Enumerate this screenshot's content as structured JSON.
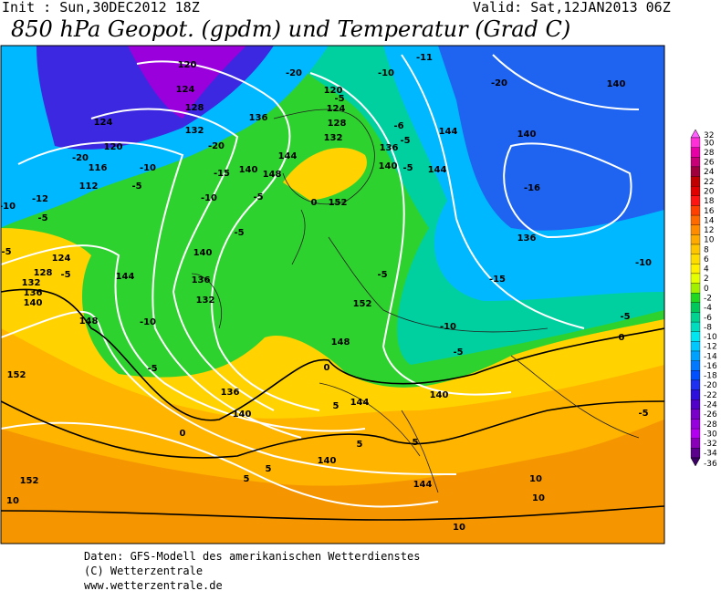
{
  "header": {
    "init": "Init : Sun,30DEC2012 18Z",
    "valid": "Valid: Sat,12JAN2013 06Z",
    "title": "850 hPa Geopot. (gpdm) und Temperatur (Grad C)"
  },
  "colorbar": {
    "levels": [
      32,
      30,
      28,
      26,
      24,
      22,
      20,
      18,
      16,
      14,
      12,
      10,
      8,
      6,
      4,
      2,
      0,
      -2,
      -4,
      -6,
      -8,
      -10,
      -12,
      -14,
      -16,
      -18,
      -20,
      -22,
      -24,
      -26,
      -28,
      -30,
      -32,
      -34,
      -36
    ],
    "colors": [
      "#ff60ff",
      "#ff30d8",
      "#e600a6",
      "#c80078",
      "#a0003c",
      "#c00000",
      "#e00000",
      "#ff1414",
      "#ff4000",
      "#ff6a00",
      "#ff8c00",
      "#ffaa00",
      "#ffc600",
      "#ffdc00",
      "#fff000",
      "#e4ff00",
      "#a0f000",
      "#20d820",
      "#00c85a",
      "#00d290",
      "#00dcbe",
      "#00e6f0",
      "#00c8ff",
      "#00a0ff",
      "#0078ff",
      "#0050ff",
      "#1e30f0",
      "#2e10dc",
      "#5000c8",
      "#7800c8",
      "#9600dc",
      "#b400f0",
      "#8a00b8",
      "#5a008c",
      "#3a0064"
    ]
  },
  "contour_labels": [
    "120",
    "124",
    "128",
    "132",
    "-20",
    "-10",
    "-11",
    "-20",
    "140",
    "120",
    "-5",
    "124",
    "128",
    "132",
    "136",
    "124",
    "-20",
    "120",
    "116",
    "-10",
    "112",
    "-5",
    "-15",
    "-20",
    "140",
    "148",
    "144",
    "-5",
    "-10",
    "-5",
    "-6",
    "-5",
    "136",
    "144",
    "140",
    "-16",
    "140",
    "-5",
    "144",
    "0",
    "152",
    "-5",
    "152",
    "136",
    "-10",
    "-15",
    "-5",
    "-10",
    "-5",
    "0",
    "-12",
    "-5",
    "-10",
    "-5",
    "124",
    "128",
    "132",
    "136",
    "140",
    "-5",
    "144",
    "140",
    "136",
    "132",
    "-10",
    "148",
    "148",
    "0",
    "-5",
    "152",
    "136",
    "144",
    "140",
    "140",
    "5",
    "-5",
    "0",
    "5",
    "5",
    "140",
    "5",
    "5",
    "144",
    "10",
    "10",
    "10",
    "152",
    "10"
  ],
  "footer": [
    "Daten: GFS-Modell des amerikanischen Wetterdienstes",
    "(C) Wetterzentrale",
    "www.wetterzentrale.de"
  ]
}
